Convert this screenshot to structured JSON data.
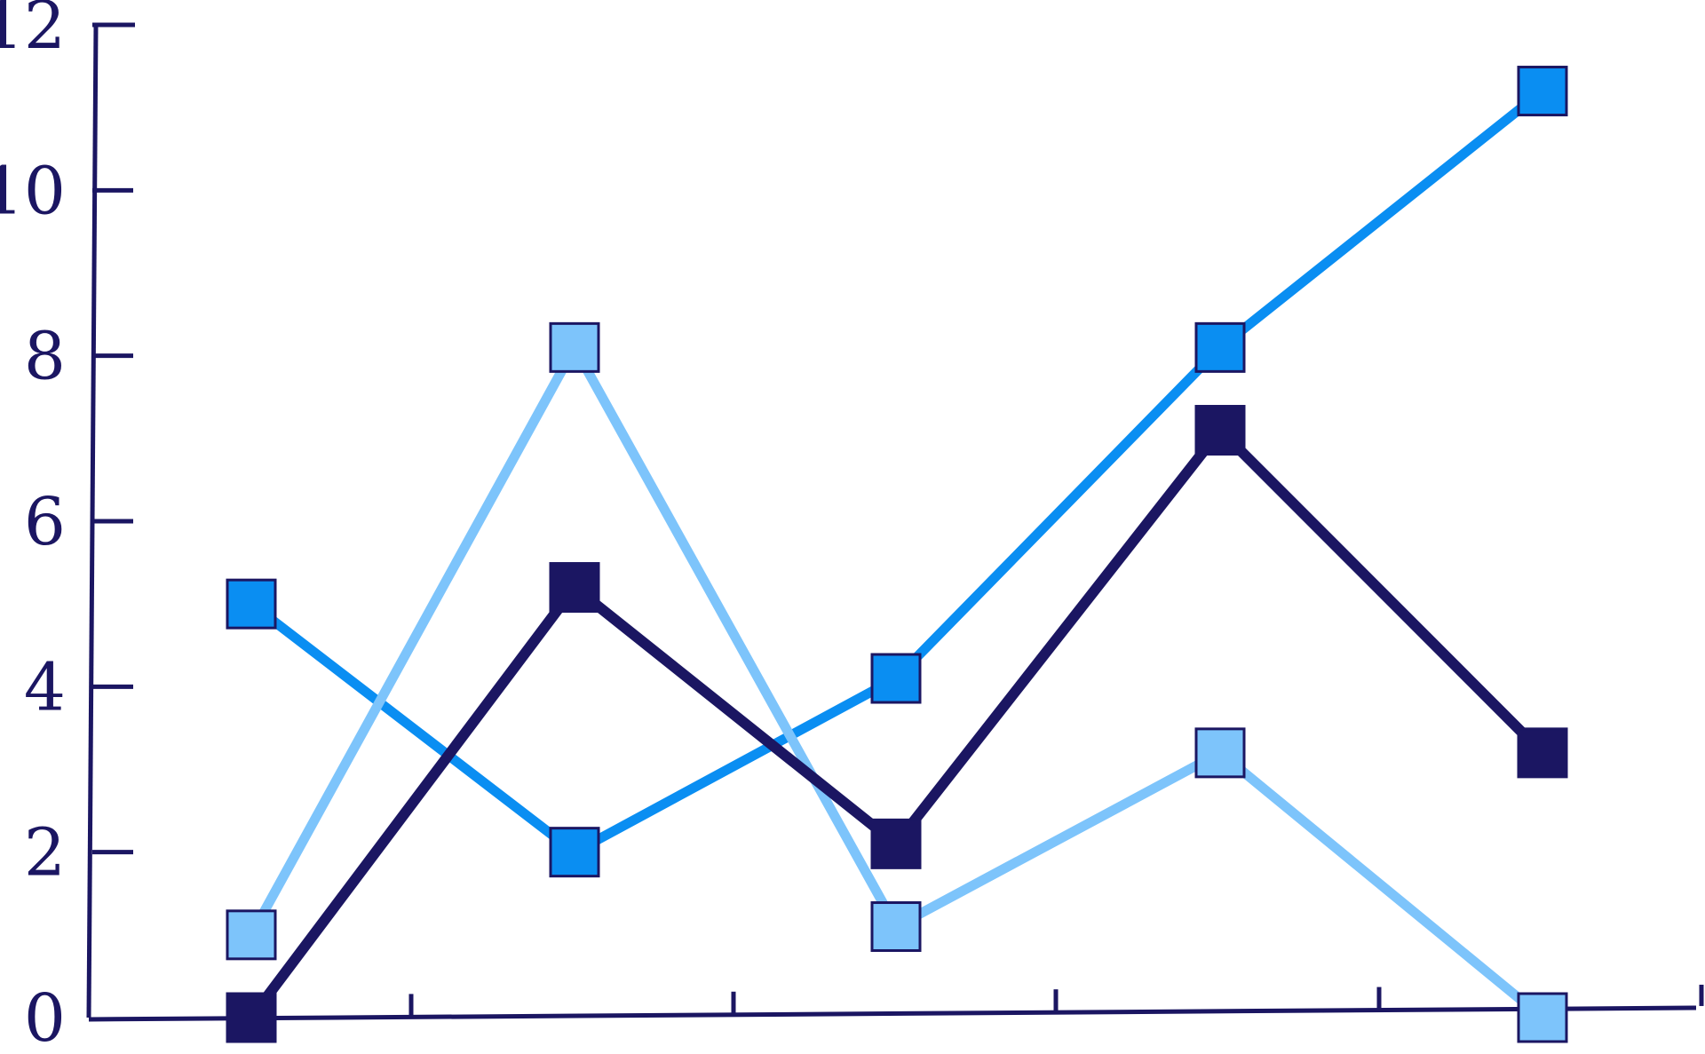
{
  "chart_data": {
    "type": "line",
    "title": "",
    "xlabel": "",
    "ylabel": "",
    "x": [
      1,
      2,
      3,
      4,
      5
    ],
    "ylim": [
      0,
      12
    ],
    "y_ticks": [
      "0",
      "2",
      "4",
      "6",
      "8",
      "10",
      "12"
    ],
    "x_tick_count": 6,
    "grid": false,
    "legend": "none",
    "series": [
      {
        "values": [
          5.0,
          2.0,
          4.1,
          8.1,
          11.2
        ],
        "color": "#0a8ef2"
      },
      {
        "values": [
          1.0,
          8.1,
          1.1,
          3.2,
          0.0
        ],
        "color": "#7dc4fb"
      },
      {
        "values": [
          0.0,
          5.2,
          2.1,
          7.1,
          3.2
        ],
        "color": "#1b1662"
      }
    ],
    "axis_color": "#1b1662",
    "marker": "square"
  }
}
